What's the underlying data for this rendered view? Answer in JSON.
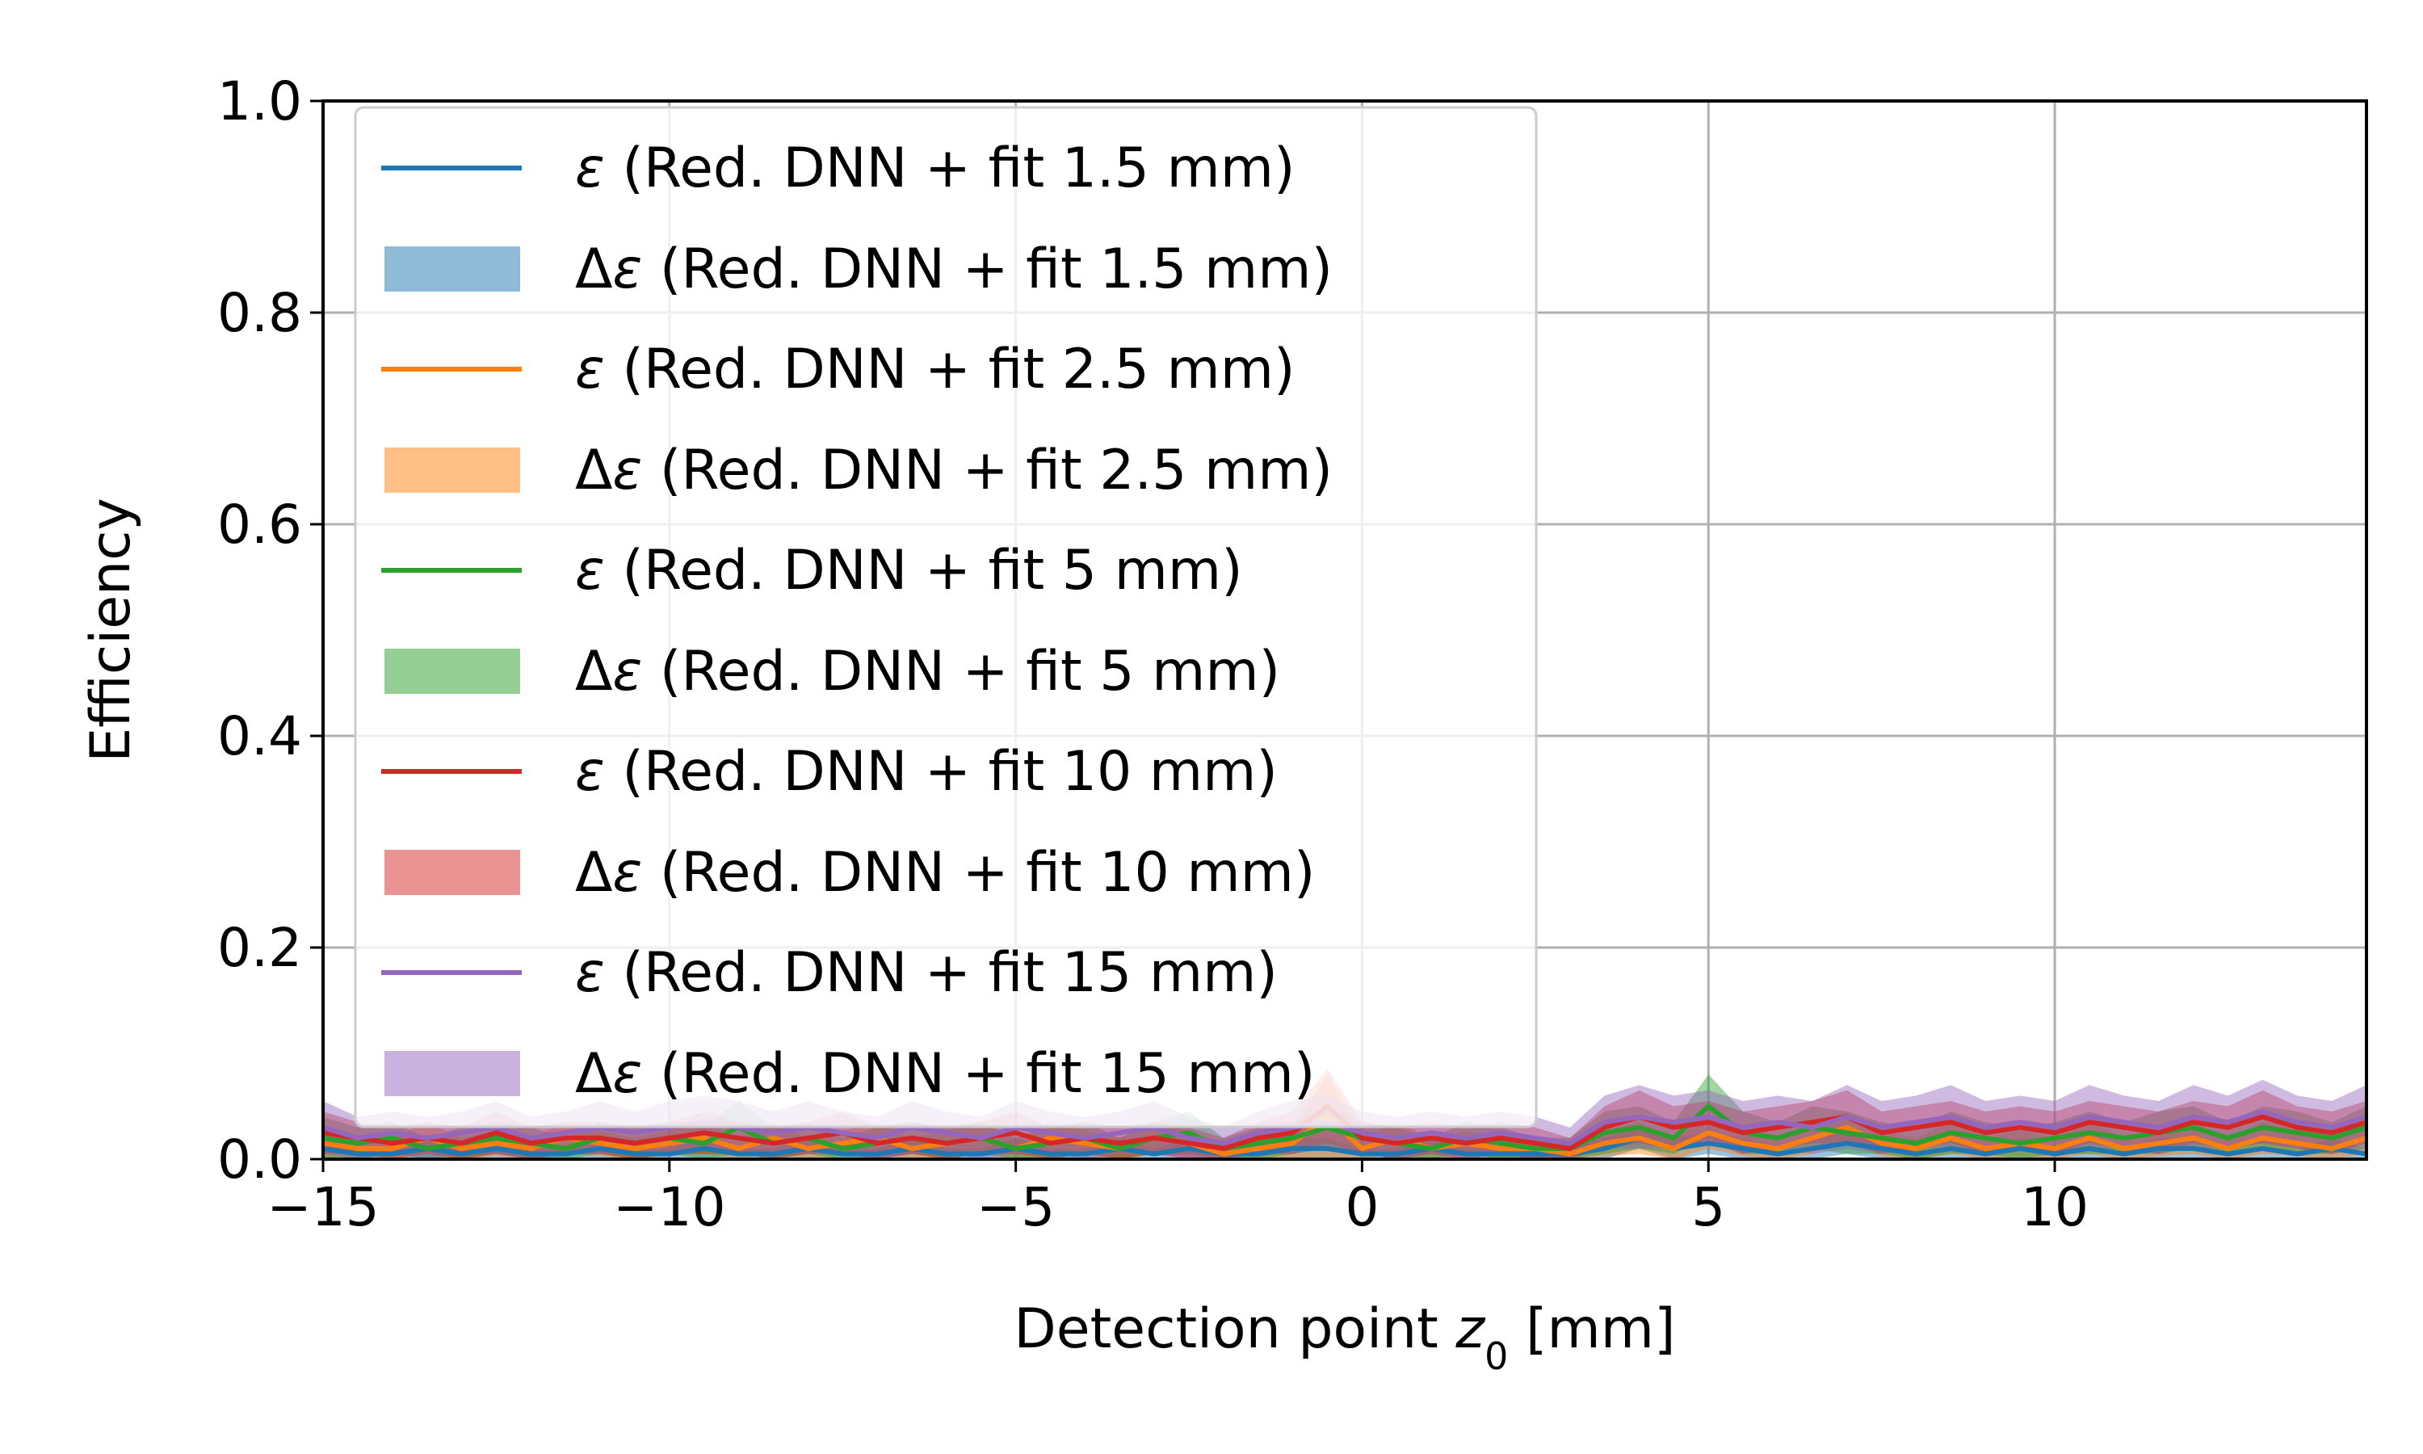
{
  "chart_data": {
    "type": "line",
    "title": "",
    "xlabel_prefix": "Detection point ",
    "xlabel_var": "z",
    "xlabel_sub": "0",
    "xlabel_suffix": " [mm]",
    "ylabel": "Efficiency",
    "xlim": [
      -15,
      14.5
    ],
    "ylim": [
      0,
      1.0
    ],
    "x_ticks": [
      -15,
      -10,
      -5,
      0,
      5,
      10
    ],
    "x_tick_labels": [
      "−15",
      "−10",
      "−5",
      "0",
      "5",
      "10"
    ],
    "y_ticks": [
      0,
      0.2,
      0.4,
      0.6,
      0.8,
      1.0
    ],
    "y_tick_labels": [
      "0.0",
      "0.2",
      "0.4",
      "0.6",
      "0.8",
      "1.0"
    ],
    "grid": true,
    "legend_position": "upper-left",
    "x": [
      -15,
      -14.5,
      -14,
      -13.5,
      -13,
      -12.5,
      -12,
      -11.5,
      -11,
      -10.5,
      -10,
      -9.5,
      -9,
      -8.5,
      -8,
      -7.5,
      -7,
      -6.5,
      -6,
      -5.5,
      -5,
      -4.5,
      -4,
      -3.5,
      -3,
      -2.5,
      -2,
      -1.5,
      -1,
      -0.5,
      0,
      0.5,
      1,
      1.5,
      2,
      2.5,
      3,
      3.5,
      4,
      4.5,
      5,
      5.5,
      6,
      6.5,
      7,
      7.5,
      8,
      8.5,
      9,
      9.5,
      10,
      10.5,
      11,
      11.5,
      12,
      12.5,
      13,
      13.5,
      14,
      14.5
    ],
    "series": [
      {
        "name": "(Red. DNN + fit 1.5 mm)",
        "band_name": "(Red. DNN + fit 1.5 mm)",
        "line_color": "#1f77b4",
        "band_color": "#1f77b4",
        "values": [
          0.01,
          0.005,
          0.005,
          0.01,
          0.005,
          0.01,
          0.005,
          0.005,
          0.01,
          0.005,
          0.005,
          0.01,
          0.005,
          0.005,
          0.01,
          0.005,
          0.005,
          0.01,
          0.005,
          0.005,
          0.01,
          0.005,
          0.005,
          0.01,
          0.005,
          0.01,
          0.005,
          0.005,
          0.01,
          0.01,
          0.005,
          0.005,
          0.01,
          0.005,
          0.005,
          0.005,
          0.005,
          0.01,
          0.02,
          0.01,
          0.015,
          0.01,
          0.005,
          0.01,
          0.015,
          0.01,
          0.005,
          0.01,
          0.005,
          0.01,
          0.005,
          0.01,
          0.005,
          0.01,
          0.01,
          0.005,
          0.01,
          0.005,
          0.01,
          0.005
        ],
        "errors": [
          0.01,
          0.005,
          0.005,
          0.01,
          0.005,
          0.01,
          0.005,
          0.005,
          0.01,
          0.005,
          0.005,
          0.01,
          0.005,
          0.005,
          0.01,
          0.005,
          0.005,
          0.01,
          0.005,
          0.005,
          0.01,
          0.005,
          0.005,
          0.01,
          0.005,
          0.01,
          0.005,
          0.005,
          0.01,
          0.01,
          0.005,
          0.005,
          0.01,
          0.005,
          0.005,
          0.005,
          0.005,
          0.01,
          0.01,
          0.01,
          0.01,
          0.01,
          0.005,
          0.01,
          0.01,
          0.01,
          0.005,
          0.01,
          0.005,
          0.01,
          0.005,
          0.01,
          0.005,
          0.01,
          0.01,
          0.005,
          0.01,
          0.005,
          0.01,
          0.005
        ]
      },
      {
        "name": "(Red. DNN + fit 2.5 mm)",
        "band_name": "(Red. DNN + fit 2.5 mm)",
        "line_color": "#ff7f0e",
        "band_color": "#ff7f0e",
        "values": [
          0.015,
          0.01,
          0.01,
          0.02,
          0.01,
          0.015,
          0.01,
          0.02,
          0.015,
          0.01,
          0.015,
          0.02,
          0.01,
          0.02,
          0.01,
          0.015,
          0.02,
          0.01,
          0.015,
          0.02,
          0.01,
          0.02,
          0.015,
          0.01,
          0.02,
          0.015,
          0.005,
          0.01,
          0.015,
          0.04,
          0.01,
          0.02,
          0.01,
          0.015,
          0.01,
          0.01,
          0.005,
          0.015,
          0.02,
          0.01,
          0.025,
          0.015,
          0.01,
          0.02,
          0.03,
          0.015,
          0.01,
          0.02,
          0.01,
          0.015,
          0.01,
          0.02,
          0.01,
          0.015,
          0.02,
          0.01,
          0.02,
          0.015,
          0.01,
          0.02
        ],
        "errors": [
          0.015,
          0.01,
          0.01,
          0.015,
          0.01,
          0.012,
          0.01,
          0.015,
          0.012,
          0.01,
          0.012,
          0.015,
          0.01,
          0.015,
          0.01,
          0.012,
          0.015,
          0.01,
          0.012,
          0.015,
          0.01,
          0.015,
          0.012,
          0.01,
          0.015,
          0.012,
          0.005,
          0.01,
          0.015,
          0.04,
          0.01,
          0.015,
          0.01,
          0.012,
          0.01,
          0.01,
          0.005,
          0.012,
          0.015,
          0.01,
          0.015,
          0.012,
          0.01,
          0.015,
          0.015,
          0.012,
          0.01,
          0.015,
          0.01,
          0.012,
          0.01,
          0.015,
          0.01,
          0.012,
          0.015,
          0.01,
          0.015,
          0.012,
          0.01,
          0.015
        ]
      },
      {
        "name": "(Red. DNN + fit 5 mm)",
        "band_name": "(Red. DNN + fit 5 mm)",
        "line_color": "#2ca02c",
        "band_color": "#2ca02c",
        "values": [
          0.02,
          0.015,
          0.02,
          0.01,
          0.015,
          0.02,
          0.015,
          0.01,
          0.02,
          0.015,
          0.02,
          0.015,
          0.03,
          0.015,
          0.02,
          0.01,
          0.015,
          0.02,
          0.015,
          0.02,
          0.01,
          0.015,
          0.02,
          0.01,
          0.02,
          0.025,
          0.01,
          0.015,
          0.02,
          0.03,
          0.02,
          0.015,
          0.01,
          0.02,
          0.015,
          0.01,
          0.01,
          0.025,
          0.03,
          0.02,
          0.05,
          0.025,
          0.02,
          0.03,
          0.025,
          0.02,
          0.015,
          0.025,
          0.02,
          0.015,
          0.02,
          0.025,
          0.02,
          0.025,
          0.03,
          0.02,
          0.03,
          0.025,
          0.02,
          0.03
        ],
        "errors": [
          0.02,
          0.015,
          0.015,
          0.01,
          0.015,
          0.015,
          0.015,
          0.01,
          0.015,
          0.015,
          0.015,
          0.015,
          0.025,
          0.015,
          0.015,
          0.01,
          0.015,
          0.015,
          0.015,
          0.015,
          0.01,
          0.015,
          0.015,
          0.01,
          0.015,
          0.02,
          0.01,
          0.015,
          0.015,
          0.02,
          0.015,
          0.015,
          0.01,
          0.015,
          0.015,
          0.01,
          0.01,
          0.02,
          0.02,
          0.015,
          0.03,
          0.02,
          0.015,
          0.02,
          0.02,
          0.015,
          0.015,
          0.02,
          0.015,
          0.015,
          0.015,
          0.02,
          0.015,
          0.02,
          0.02,
          0.015,
          0.02,
          0.02,
          0.015,
          0.02
        ]
      },
      {
        "name": "(Red. DNN + fit 10 mm)",
        "band_name": "(Red. DNN + fit 10 mm)",
        "line_color": "#d62728",
        "band_color": "#d62728",
        "values": [
          0.025,
          0.02,
          0.015,
          0.02,
          0.015,
          0.025,
          0.015,
          0.02,
          0.02,
          0.015,
          0.02,
          0.025,
          0.02,
          0.015,
          0.02,
          0.025,
          0.015,
          0.02,
          0.015,
          0.02,
          0.025,
          0.015,
          0.02,
          0.015,
          0.02,
          0.015,
          0.01,
          0.02,
          0.025,
          0.05,
          0.02,
          0.015,
          0.02,
          0.015,
          0.02,
          0.015,
          0.01,
          0.03,
          0.04,
          0.03,
          0.035,
          0.025,
          0.03,
          0.035,
          0.04,
          0.025,
          0.03,
          0.035,
          0.025,
          0.03,
          0.025,
          0.035,
          0.03,
          0.025,
          0.035,
          0.03,
          0.04,
          0.03,
          0.025,
          0.035
        ],
        "errors": [
          0.02,
          0.015,
          0.015,
          0.015,
          0.015,
          0.02,
          0.015,
          0.015,
          0.015,
          0.015,
          0.015,
          0.02,
          0.015,
          0.015,
          0.015,
          0.02,
          0.015,
          0.015,
          0.015,
          0.015,
          0.02,
          0.015,
          0.015,
          0.015,
          0.015,
          0.015,
          0.01,
          0.015,
          0.02,
          0.035,
          0.015,
          0.015,
          0.015,
          0.015,
          0.015,
          0.015,
          0.01,
          0.02,
          0.025,
          0.02,
          0.02,
          0.02,
          0.02,
          0.02,
          0.025,
          0.02,
          0.02,
          0.02,
          0.02,
          0.02,
          0.02,
          0.02,
          0.02,
          0.02,
          0.02,
          0.02,
          0.025,
          0.02,
          0.02,
          0.02
        ]
      },
      {
        "name": "(Red. DNN + fit 15 mm)",
        "band_name": "(Red. DNN + fit 15 mm)",
        "line_color": "#9467bd",
        "band_color": "#9467bd",
        "values": [
          0.03,
          0.02,
          0.025,
          0.02,
          0.025,
          0.03,
          0.02,
          0.025,
          0.03,
          0.025,
          0.03,
          0.035,
          0.03,
          0.025,
          0.03,
          0.025,
          0.02,
          0.03,
          0.025,
          0.02,
          0.03,
          0.025,
          0.02,
          0.025,
          0.03,
          0.02,
          0.015,
          0.025,
          0.03,
          0.035,
          0.025,
          0.02,
          0.025,
          0.02,
          0.025,
          0.02,
          0.015,
          0.035,
          0.04,
          0.035,
          0.04,
          0.03,
          0.035,
          0.03,
          0.04,
          0.03,
          0.035,
          0.04,
          0.03,
          0.035,
          0.03,
          0.04,
          0.035,
          0.03,
          0.04,
          0.035,
          0.045,
          0.035,
          0.03,
          0.04
        ],
        "errors": [
          0.025,
          0.02,
          0.02,
          0.02,
          0.02,
          0.025,
          0.02,
          0.02,
          0.025,
          0.02,
          0.025,
          0.025,
          0.025,
          0.02,
          0.025,
          0.02,
          0.02,
          0.025,
          0.02,
          0.02,
          0.025,
          0.02,
          0.02,
          0.02,
          0.025,
          0.02,
          0.015,
          0.02,
          0.025,
          0.025,
          0.02,
          0.02,
          0.02,
          0.02,
          0.02,
          0.02,
          0.015,
          0.025,
          0.03,
          0.025,
          0.025,
          0.025,
          0.025,
          0.025,
          0.03,
          0.025,
          0.025,
          0.03,
          0.025,
          0.025,
          0.025,
          0.03,
          0.025,
          0.025,
          0.03,
          0.025,
          0.03,
          0.025,
          0.025,
          0.03
        ]
      }
    ]
  }
}
